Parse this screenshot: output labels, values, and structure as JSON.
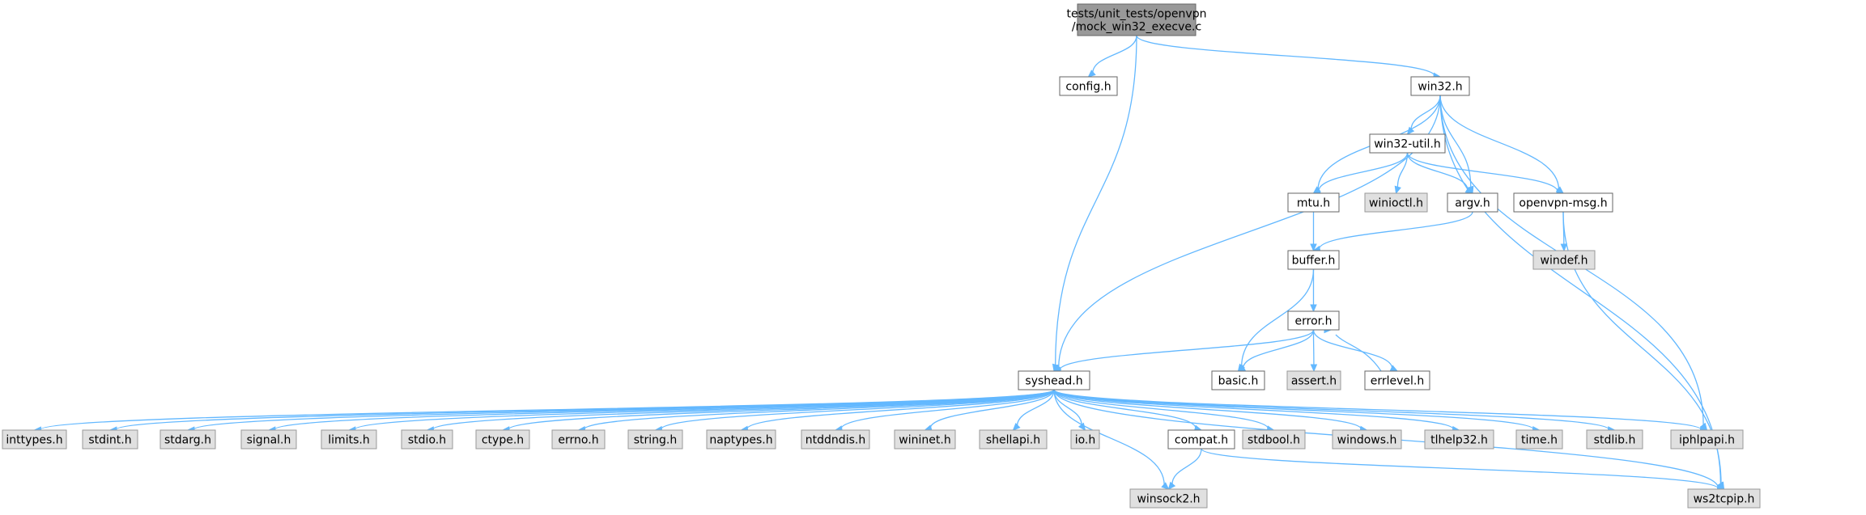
{
  "colors": {
    "background": "#ffffff",
    "root_fill": "#999999",
    "local_fill": "#ffffff",
    "system_fill": "#e0e0e0",
    "border": "#666666",
    "edge": "#63b8ff"
  },
  "nodes": [
    {
      "id": "root",
      "lines": [
        "tests/unit_tests/openvpn",
        "/mock_win32_execve.c"
      ],
      "kind": "root"
    },
    {
      "id": "config",
      "lines": [
        "config.h"
      ],
      "kind": "local"
    },
    {
      "id": "win32",
      "lines": [
        "win32.h"
      ],
      "kind": "local"
    },
    {
      "id": "win32util",
      "lines": [
        "win32-util.h"
      ],
      "kind": "local"
    },
    {
      "id": "mtu",
      "lines": [
        "mtu.h"
      ],
      "kind": "local"
    },
    {
      "id": "winioctl",
      "lines": [
        "winioctl.h"
      ],
      "kind": "system"
    },
    {
      "id": "argv",
      "lines": [
        "argv.h"
      ],
      "kind": "local"
    },
    {
      "id": "openvpnmsg",
      "lines": [
        "openvpn-msg.h"
      ],
      "kind": "local"
    },
    {
      "id": "windef",
      "lines": [
        "windef.h"
      ],
      "kind": "system"
    },
    {
      "id": "buffer",
      "lines": [
        "buffer.h"
      ],
      "kind": "local"
    },
    {
      "id": "error",
      "lines": [
        "error.h"
      ],
      "kind": "local"
    },
    {
      "id": "syshead",
      "lines": [
        "syshead.h"
      ],
      "kind": "local"
    },
    {
      "id": "basic",
      "lines": [
        "basic.h"
      ],
      "kind": "local"
    },
    {
      "id": "assert",
      "lines": [
        "assert.h"
      ],
      "kind": "system"
    },
    {
      "id": "errlevel",
      "lines": [
        "errlevel.h"
      ],
      "kind": "local"
    },
    {
      "id": "inttypes",
      "lines": [
        "inttypes.h"
      ],
      "kind": "system"
    },
    {
      "id": "stdint",
      "lines": [
        "stdint.h"
      ],
      "kind": "system"
    },
    {
      "id": "stdarg",
      "lines": [
        "stdarg.h"
      ],
      "kind": "system"
    },
    {
      "id": "signal",
      "lines": [
        "signal.h"
      ],
      "kind": "system"
    },
    {
      "id": "limits",
      "lines": [
        "limits.h"
      ],
      "kind": "system"
    },
    {
      "id": "stdio",
      "lines": [
        "stdio.h"
      ],
      "kind": "system"
    },
    {
      "id": "ctype",
      "lines": [
        "ctype.h"
      ],
      "kind": "system"
    },
    {
      "id": "errno",
      "lines": [
        "errno.h"
      ],
      "kind": "system"
    },
    {
      "id": "string",
      "lines": [
        "string.h"
      ],
      "kind": "system"
    },
    {
      "id": "naptypes",
      "lines": [
        "naptypes.h"
      ],
      "kind": "system"
    },
    {
      "id": "ntddndis",
      "lines": [
        "ntddndis.h"
      ],
      "kind": "system"
    },
    {
      "id": "wininet",
      "lines": [
        "wininet.h"
      ],
      "kind": "system"
    },
    {
      "id": "shellapi",
      "lines": [
        "shellapi.h"
      ],
      "kind": "system"
    },
    {
      "id": "io",
      "lines": [
        "io.h"
      ],
      "kind": "system"
    },
    {
      "id": "compat",
      "lines": [
        "compat.h"
      ],
      "kind": "local"
    },
    {
      "id": "stdbool",
      "lines": [
        "stdbool.h"
      ],
      "kind": "system"
    },
    {
      "id": "windows",
      "lines": [
        "windows.h"
      ],
      "kind": "system"
    },
    {
      "id": "tlhelp32",
      "lines": [
        "tlhelp32.h"
      ],
      "kind": "system"
    },
    {
      "id": "time",
      "lines": [
        "time.h"
      ],
      "kind": "system"
    },
    {
      "id": "stdlib",
      "lines": [
        "stdlib.h"
      ],
      "kind": "system"
    },
    {
      "id": "iphlpapi",
      "lines": [
        "iphlpapi.h"
      ],
      "kind": "system"
    },
    {
      "id": "winsock2",
      "lines": [
        "winsock2.h"
      ],
      "kind": "system"
    },
    {
      "id": "ws2tcpip",
      "lines": [
        "ws2tcpip.h"
      ],
      "kind": "system"
    }
  ],
  "edges": [
    [
      "root",
      "config"
    ],
    [
      "root",
      "win32"
    ],
    [
      "root",
      "syshead"
    ],
    [
      "win32",
      "win32util"
    ],
    [
      "win32",
      "mtu"
    ],
    [
      "win32",
      "argv"
    ],
    [
      "win32",
      "openvpnmsg"
    ],
    [
      "win32",
      "syshead"
    ],
    [
      "win32",
      "iphlpapi"
    ],
    [
      "win32",
      "ws2tcpip"
    ],
    [
      "win32util",
      "mtu"
    ],
    [
      "win32util",
      "winioctl"
    ],
    [
      "win32util",
      "argv"
    ],
    [
      "win32util",
      "openvpnmsg"
    ],
    [
      "mtu",
      "buffer"
    ],
    [
      "argv",
      "buffer"
    ],
    [
      "openvpnmsg",
      "windef"
    ],
    [
      "openvpnmsg",
      "ws2tcpip"
    ],
    [
      "buffer",
      "error"
    ],
    [
      "buffer",
      "basic"
    ],
    [
      "error",
      "syshead"
    ],
    [
      "error",
      "basic"
    ],
    [
      "error",
      "assert"
    ],
    [
      "error",
      "errlevel"
    ],
    [
      "errlevel",
      "error"
    ],
    [
      "syshead",
      "inttypes"
    ],
    [
      "syshead",
      "stdint"
    ],
    [
      "syshead",
      "stdarg"
    ],
    [
      "syshead",
      "signal"
    ],
    [
      "syshead",
      "limits"
    ],
    [
      "syshead",
      "stdio"
    ],
    [
      "syshead",
      "ctype"
    ],
    [
      "syshead",
      "errno"
    ],
    [
      "syshead",
      "string"
    ],
    [
      "syshead",
      "naptypes"
    ],
    [
      "syshead",
      "ntddndis"
    ],
    [
      "syshead",
      "wininet"
    ],
    [
      "syshead",
      "shellapi"
    ],
    [
      "syshead",
      "io"
    ],
    [
      "syshead",
      "compat"
    ],
    [
      "syshead",
      "stdbool"
    ],
    [
      "syshead",
      "windows"
    ],
    [
      "syshead",
      "tlhelp32"
    ],
    [
      "syshead",
      "time"
    ],
    [
      "syshead",
      "stdlib"
    ],
    [
      "syshead",
      "iphlpapi"
    ],
    [
      "syshead",
      "winsock2"
    ],
    [
      "syshead",
      "ws2tcpip"
    ],
    [
      "compat",
      "winsock2"
    ],
    [
      "compat",
      "ws2tcpip"
    ]
  ]
}
